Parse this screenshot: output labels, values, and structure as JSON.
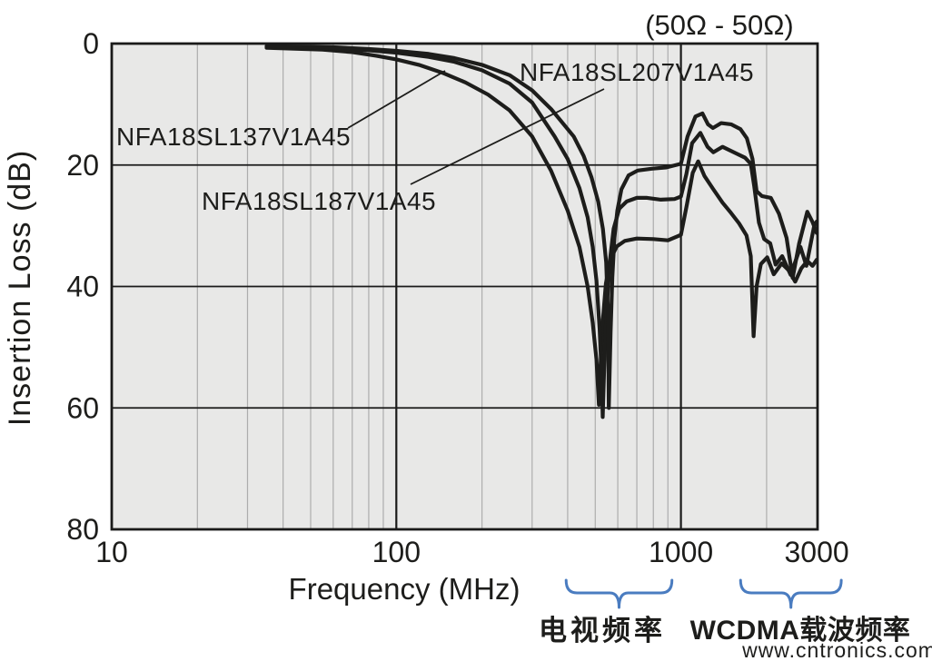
{
  "title": "(50Ω - 50Ω)",
  "watermark": "www.cntronics.com",
  "axes": {
    "x": {
      "label": "Frequency (MHz)",
      "scale": "log",
      "min": 10,
      "max": 3000,
      "ticks": [
        10,
        100,
        1000,
        3000
      ],
      "major_gridlines": [
        100,
        1000
      ],
      "minor_gridlines": [
        20,
        30,
        40,
        50,
        60,
        70,
        80,
        90,
        200,
        300,
        400,
        500,
        600,
        700,
        800,
        900,
        2000
      ]
    },
    "y": {
      "label": "Insertion Loss (dB)",
      "min": 0,
      "max": 80,
      "inverted": true,
      "ticks": [
        0,
        20,
        40,
        60,
        80
      ],
      "major_gridlines": [
        20,
        40,
        60
      ]
    }
  },
  "chart_data": {
    "type": "line",
    "x_unit": "MHz",
    "y_unit": "dB",
    "title": "(50Ω - 50Ω)",
    "xlabel": "Frequency (MHz)",
    "ylabel": "Insertion Loss (dB)",
    "xlim": [
      10,
      3000
    ],
    "ylim": [
      0,
      80
    ],
    "x_scale": "log",
    "y_inverted": true,
    "grid": true,
    "series": [
      {
        "name": "NFA18SL137V1A45",
        "points": [
          [
            35,
            0.7
          ],
          [
            55,
            1.0
          ],
          [
            70,
            1.4
          ],
          [
            85,
            2.0
          ],
          [
            100,
            2.6
          ],
          [
            120,
            3.5
          ],
          [
            145,
            4.8
          ],
          [
            175,
            6.4
          ],
          [
            210,
            8.4
          ],
          [
            250,
            11.0
          ],
          [
            300,
            15.3
          ],
          [
            350,
            21.0
          ],
          [
            400,
            27.5
          ],
          [
            440,
            33.5
          ],
          [
            470,
            40.0
          ],
          [
            490,
            46.0
          ],
          [
            505,
            52.0
          ],
          [
            515,
            59.5
          ],
          [
            522,
            53.0
          ],
          [
            532,
            45.5
          ],
          [
            545,
            39.5
          ],
          [
            565,
            35.5
          ],
          [
            595,
            33.4
          ],
          [
            635,
            32.5
          ],
          [
            700,
            32.1
          ],
          [
            800,
            32.2
          ],
          [
            900,
            32.4
          ],
          [
            1000,
            31.5
          ],
          [
            1050,
            26.5
          ],
          [
            1100,
            21.3
          ],
          [
            1150,
            19.4
          ],
          [
            1210,
            21.8
          ],
          [
            1300,
            24.0
          ],
          [
            1400,
            26.2
          ],
          [
            1500,
            27.9
          ],
          [
            1600,
            29.6
          ],
          [
            1700,
            31.6
          ],
          [
            1760,
            35.0
          ],
          [
            1800,
            48.2
          ],
          [
            1845,
            40.0
          ],
          [
            1910,
            36.3
          ],
          [
            2010,
            35.2
          ],
          [
            2120,
            38.0
          ],
          [
            2260,
            36.2
          ],
          [
            2400,
            37.4
          ],
          [
            2520,
            39.2
          ],
          [
            2650,
            37.0
          ],
          [
            2780,
            35.8
          ],
          [
            2900,
            36.6
          ],
          [
            3000,
            35.6
          ]
        ]
      },
      {
        "name": "NFA18SL187V1A45",
        "points": [
          [
            35,
            0.5
          ],
          [
            60,
            0.8
          ],
          [
            80,
            1.1
          ],
          [
            100,
            1.5
          ],
          [
            130,
            2.2
          ],
          [
            160,
            3.0
          ],
          [
            200,
            4.4
          ],
          [
            250,
            6.6
          ],
          [
            300,
            9.7
          ],
          [
            360,
            15.3
          ],
          [
            400,
            19.0
          ],
          [
            440,
            23.8
          ],
          [
            470,
            28.6
          ],
          [
            490,
            33.5
          ],
          [
            505,
            39.0
          ],
          [
            518,
            47.0
          ],
          [
            527,
            55.0
          ],
          [
            531,
            61.5
          ],
          [
            539,
            51.5
          ],
          [
            549,
            43.5
          ],
          [
            562,
            36.0
          ],
          [
            580,
            30.5
          ],
          [
            607,
            27.2
          ],
          [
            645,
            26.0
          ],
          [
            700,
            25.4
          ],
          [
            760,
            25.4
          ],
          [
            850,
            25.7
          ],
          [
            950,
            25.6
          ],
          [
            1000,
            25.2
          ],
          [
            1045,
            21.5
          ],
          [
            1095,
            16.4
          ],
          [
            1170,
            14.7
          ],
          [
            1240,
            17.0
          ],
          [
            1300,
            17.9
          ],
          [
            1400,
            17.0
          ],
          [
            1550,
            18.0
          ],
          [
            1680,
            18.8
          ],
          [
            1760,
            19.8
          ],
          [
            1810,
            23.5
          ],
          [
            1880,
            29.5
          ],
          [
            1960,
            32.2
          ],
          [
            2060,
            32.9
          ],
          [
            2150,
            36.4
          ],
          [
            2270,
            35.0
          ],
          [
            2430,
            38.1
          ],
          [
            2630,
            33.5
          ],
          [
            2760,
            36.6
          ],
          [
            2940,
            30.0
          ],
          [
            3000,
            29.3
          ]
        ]
      },
      {
        "name": "NFA18SL207V1A45",
        "points": [
          [
            35,
            0.4
          ],
          [
            60,
            0.6
          ],
          [
            80,
            0.9
          ],
          [
            100,
            1.2
          ],
          [
            130,
            1.7
          ],
          [
            160,
            2.4
          ],
          [
            200,
            3.5
          ],
          [
            250,
            5.2
          ],
          [
            300,
            7.7
          ],
          [
            350,
            10.8
          ],
          [
            420,
            15.3
          ],
          [
            455,
            18.5
          ],
          [
            485,
            22.0
          ],
          [
            512,
            26.0
          ],
          [
            532,
            30.5
          ],
          [
            546,
            36.0
          ],
          [
            554,
            44.0
          ],
          [
            558,
            60.0
          ],
          [
            566,
            47.5
          ],
          [
            574,
            38.5
          ],
          [
            584,
            32.0
          ],
          [
            598,
            27.5
          ],
          [
            618,
            24.0
          ],
          [
            655,
            21.7
          ],
          [
            705,
            20.9
          ],
          [
            790,
            20.6
          ],
          [
            890,
            20.4
          ],
          [
            1000,
            19.8
          ],
          [
            1055,
            15.3
          ],
          [
            1125,
            12.0
          ],
          [
            1190,
            11.5
          ],
          [
            1245,
            13.3
          ],
          [
            1295,
            13.9
          ],
          [
            1385,
            13.1
          ],
          [
            1500,
            13.3
          ],
          [
            1620,
            14.1
          ],
          [
            1705,
            15.6
          ],
          [
            1785,
            19.0
          ],
          [
            1845,
            24.3
          ],
          [
            1925,
            25.1
          ],
          [
            2070,
            25.4
          ],
          [
            2210,
            28.0
          ],
          [
            2350,
            32.0
          ],
          [
            2470,
            38.6
          ],
          [
            2600,
            33.0
          ],
          [
            2780,
            27.7
          ],
          [
            2900,
            29.4
          ],
          [
            3000,
            31.2
          ]
        ]
      }
    ],
    "annotations": {
      "notch_1": {
        "freq_mhz": 520,
        "depth_db": 61
      },
      "notch_2": {
        "freq_mhz": 1800,
        "depth_db": 48
      }
    }
  },
  "frequency_bands": [
    {
      "label": "电视频率",
      "range_mhz": [
        395,
        930
      ]
    },
    {
      "label": "WCDMA载波频率",
      "range_mhz": [
        1620,
        3660
      ]
    }
  ],
  "colors": {
    "curve": "#1d1d1b",
    "axis": "#1a1a1a",
    "plot_background": "#e8e8e7",
    "grid_minor": "#adadad",
    "grid_major": "#1a1a1a",
    "brace": "#4a7cc0",
    "watermark": "#9bd49b",
    "text": "#1d1d1b"
  }
}
